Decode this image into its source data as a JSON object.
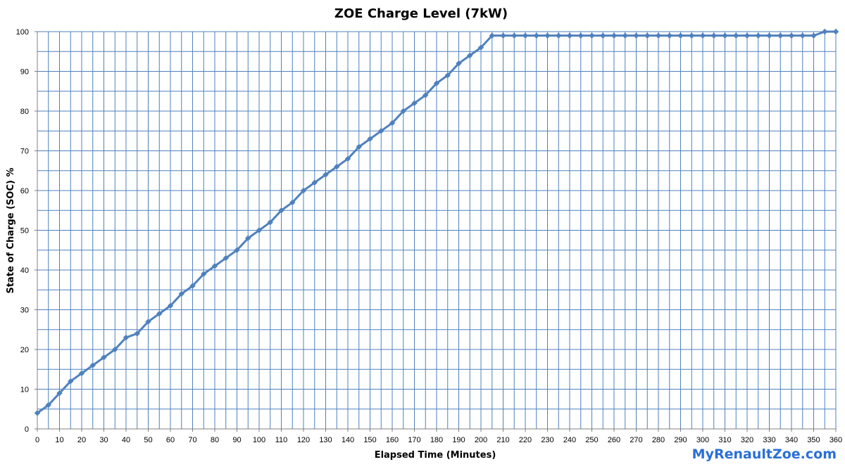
{
  "chart_data": {
    "type": "line",
    "title": "ZOE Charge Level (7kW)",
    "xlabel": "Elapsed Time (Minutes)",
    "ylabel": "State of Charge (SOC) %",
    "xlim": [
      0,
      360
    ],
    "ylim": [
      0,
      100
    ],
    "x_ticks": [
      0,
      10,
      20,
      30,
      40,
      50,
      60,
      70,
      80,
      90,
      100,
      110,
      120,
      130,
      140,
      150,
      160,
      170,
      180,
      190,
      200,
      210,
      220,
      230,
      240,
      250,
      260,
      270,
      280,
      290,
      300,
      310,
      320,
      330,
      340,
      350,
      360
    ],
    "y_ticks": [
      0,
      10,
      20,
      30,
      40,
      50,
      60,
      70,
      80,
      90,
      100
    ],
    "grid": true,
    "legend": "none",
    "series": [
      {
        "color": "#4f81bd",
        "x": [
          0,
          5,
          10,
          15,
          20,
          25,
          30,
          35,
          40,
          45,
          50,
          55,
          60,
          65,
          70,
          75,
          80,
          85,
          90,
          95,
          100,
          105,
          110,
          115,
          120,
          125,
          130,
          135,
          140,
          145,
          150,
          155,
          160,
          165,
          170,
          175,
          180,
          185,
          190,
          195,
          200,
          205,
          210,
          215,
          220,
          225,
          230,
          235,
          240,
          245,
          250,
          255,
          260,
          265,
          270,
          275,
          280,
          285,
          290,
          295,
          300,
          305,
          310,
          315,
          320,
          325,
          330,
          335,
          340,
          345,
          350,
          355,
          360
        ],
        "values": [
          4,
          6,
          9,
          12,
          14,
          16,
          18,
          20,
          23,
          24,
          27,
          29,
          31,
          34,
          36,
          39,
          41,
          43,
          45,
          48,
          50,
          52,
          55,
          57,
          60,
          62,
          64,
          66,
          68,
          71,
          73,
          75,
          77,
          80,
          82,
          84,
          87,
          89,
          92,
          94,
          96,
          99,
          99,
          99,
          99,
          99,
          99,
          99,
          99,
          99,
          99,
          99,
          99,
          99,
          99,
          99,
          99,
          99,
          99,
          99,
          99,
          99,
          99,
          99,
          99,
          99,
          99,
          99,
          99,
          99,
          99,
          100,
          100
        ]
      }
    ]
  },
  "watermark": "MyRenaultZoe.com"
}
